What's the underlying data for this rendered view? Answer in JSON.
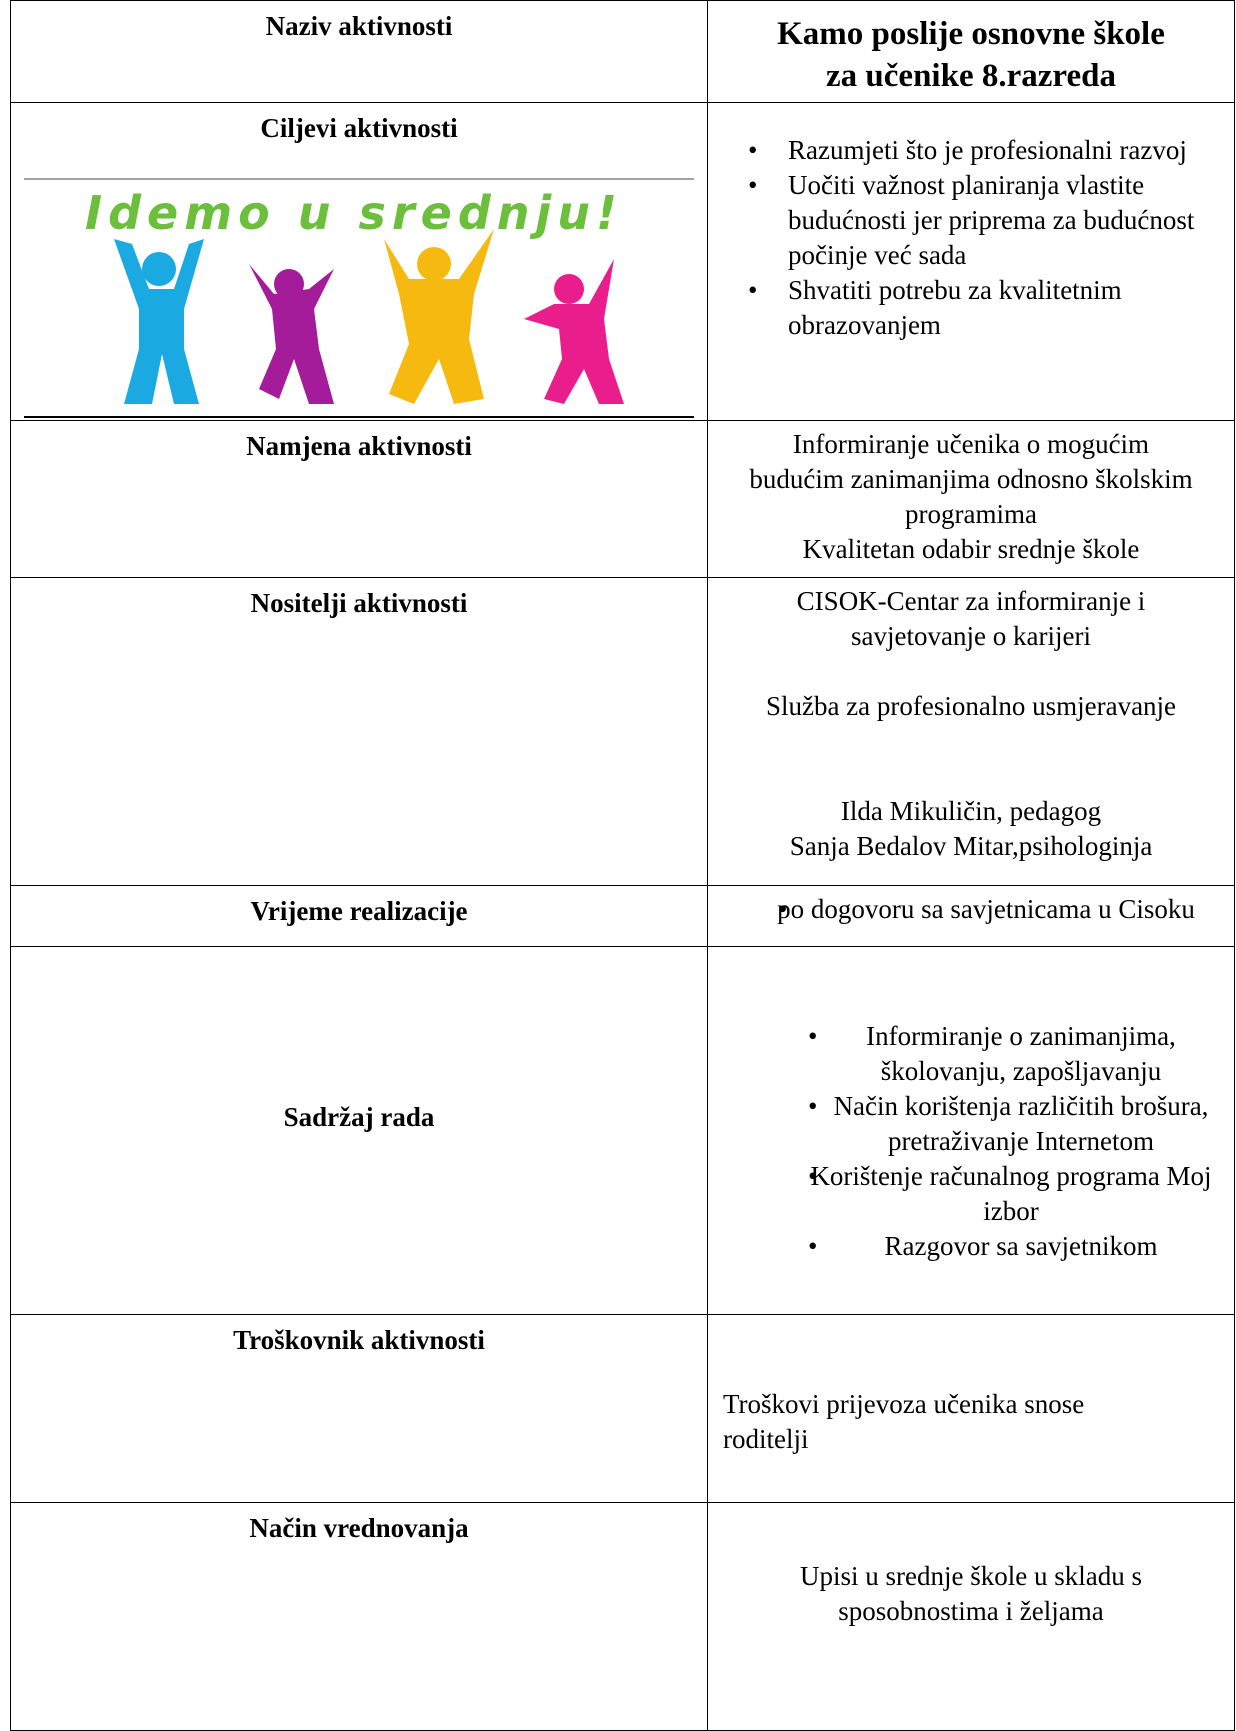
{
  "table": {
    "rows": [
      {
        "label": "Naziv aktivnosti",
        "title": [
          "Kamo poslije osnovne škole",
          "za učenike 8.razreda"
        ]
      },
      {
        "label": "Ciljevi aktivnosti",
        "image_text": "Idemo u srednju!",
        "bullets": [
          "Razumjeti što je profesionalni razvoj",
          "Uočiti važnost planiranja vlastite budućnosti jer priprema za budućnost počinje već sada",
          "Shvatiti potrebu za kvalitetnim obrazovanjem"
        ]
      },
      {
        "label": "Namjena  aktivnosti",
        "lines": [
          "Informiranje učenika o mogućim budućim zanimanjima odnosno školskim programima",
          "Kvalitetan odabir srednje škole"
        ]
      },
      {
        "label": "Nositelji aktivnosti",
        "lines": [
          "CISOK-Centar za informiranje i savjetovanje o karijeri",
          "Služba za profesionalno usmjeravanje",
          "Ilda Mikuličin, pedagog",
          "Sanja Bedalov Mitar,psihologinja"
        ]
      },
      {
        "label": "Vrijeme  realizacije",
        "bullets": [
          "po dogovoru sa savjetnicama u Cisoku"
        ]
      },
      {
        "label": "Sadržaj  rada",
        "bullets": [
          "Informiranje o zanimanjima, školovanju, zapošljavanju",
          "Način korištenja različitih brošura, pretraživanje Internetom",
          "Korištenje računalnog programa Moj izbor",
          "Razgovor sa savjetnikom"
        ]
      },
      {
        "label": "Troškovnik aktivnosti",
        "lines": [
          "Troškovi prijevoza učenika snose roditelji"
        ]
      },
      {
        "label": "Način vrednovanja",
        "lines": [
          "Upisi u srednje škole u skladu s sposobnostima i željama"
        ]
      }
    ]
  }
}
